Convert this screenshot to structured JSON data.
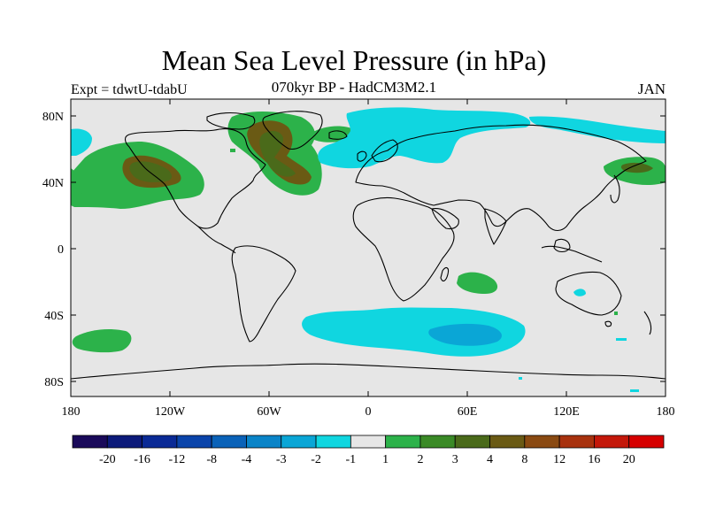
{
  "header": {
    "title": "Mean Sea Level Pressure (in hPa)",
    "subtitle": "070kyr BP - HadCM3M2.1",
    "experiment": "Expt = tdwtU-tdabU",
    "month": "JAN"
  },
  "axes": {
    "x_ticks": [
      "180",
      "120W",
      "60W",
      "0",
      "60E",
      "120E",
      "180"
    ],
    "y_ticks": [
      "80N",
      "40N",
      "0",
      "40S",
      "80S"
    ]
  },
  "colorbar": {
    "colors": [
      "#1a0a5a",
      "#0c1a7a",
      "#0a2a96",
      "#0a44aa",
      "#0a62b8",
      "#0a84c8",
      "#0aa6d6",
      "#10d6e0",
      "#e6e6e6",
      "#2cb24a",
      "#3a8a26",
      "#4a6a1a",
      "#6a5a14",
      "#8a4a12",
      "#a8320e",
      "#c4180a",
      "#d60000"
    ],
    "labels": [
      "-20",
      "-16",
      "-12",
      "-8",
      "-4",
      "-3",
      "-2",
      "-1",
      "1",
      "2",
      "3",
      "4",
      "8",
      "12",
      "16",
      "20"
    ]
  },
  "fills": {
    "ocean": "#e6e6e6",
    "neg1": "#10d6e0",
    "neg2": "#0aa6d6",
    "pos1": "#2cb24a",
    "pos3": "#4a6a1a",
    "pos4": "#6a5a14"
  }
}
